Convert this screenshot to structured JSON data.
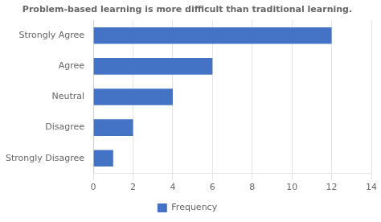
{
  "chart_data": {
    "type": "bar",
    "orientation": "horizontal",
    "title": "Problem-based learning is more difficult than traditional learning.",
    "categories": [
      "Strongly Disagree",
      "Disagree",
      "Neutral",
      "Agree",
      "Strongly Agree"
    ],
    "series": [
      {
        "name": "Frequency",
        "color": "#4472C4",
        "values": [
          1,
          2,
          4,
          6,
          12
        ]
      }
    ],
    "xlim": [
      0,
      14
    ],
    "xticks": [
      0,
      2,
      4,
      6,
      8,
      10,
      12,
      14
    ],
    "grid": true,
    "legend": "bottom"
  }
}
